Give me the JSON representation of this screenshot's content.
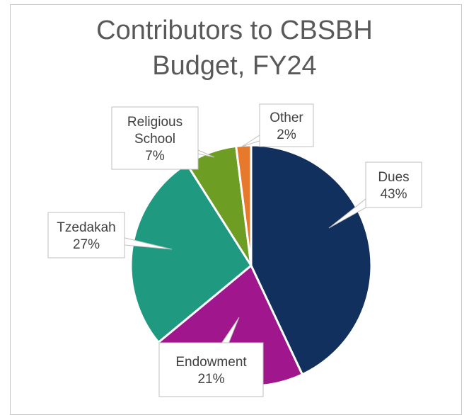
{
  "chart_data": {
    "type": "pie",
    "title_lines": [
      "Contributors to CBSBH",
      "Budget, FY24"
    ],
    "slices": [
      {
        "name": "Dues",
        "value": 43,
        "label": [
          "Dues",
          "43%"
        ],
        "color": "#12305e"
      },
      {
        "name": "Endowment",
        "value": 21,
        "label": [
          "Endowment",
          "21%"
        ],
        "color": "#a0168c"
      },
      {
        "name": "Tzedakah",
        "value": 27,
        "label": [
          "Tzedakah",
          "27%"
        ],
        "color": "#1f9a80"
      },
      {
        "name": "Religious School",
        "value": 7,
        "label": [
          "Religious",
          "School",
          "7%"
        ],
        "color": "#6e9d24"
      },
      {
        "name": "Other",
        "value": 2,
        "label": [
          "Other",
          "2%"
        ],
        "color": "#e7792d"
      }
    ],
    "legend": "none"
  }
}
